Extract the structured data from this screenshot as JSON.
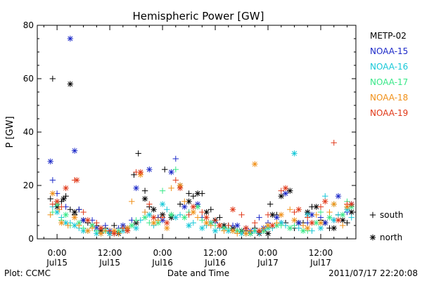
{
  "chart_data": {
    "type": "scatter",
    "title": "Hemispheric Power [GW]",
    "ylabel": "P [GW]",
    "xlabel": "Date and Time",
    "xlim_hours": [
      -4.5,
      68
    ],
    "ylim": [
      0,
      80
    ],
    "yticks": [
      0,
      20,
      40,
      60,
      80
    ],
    "xticks": [
      {
        "t": 0,
        "time": "0:00",
        "date": "Jul15"
      },
      {
        "t": 12,
        "time": "12:00",
        "date": "Jul15"
      },
      {
        "t": 24,
        "time": "0:00",
        "date": "Jul16"
      },
      {
        "t": 36,
        "time": "12:00",
        "date": "Jul16"
      },
      {
        "t": 48,
        "time": "0:00",
        "date": "Jul17"
      },
      {
        "t": 60,
        "time": "12:00",
        "date": "Jul17"
      }
    ],
    "marker_legend": [
      {
        "symbol": "+",
        "label": "south"
      },
      {
        "symbol": "*",
        "label": "north"
      }
    ],
    "series": [
      {
        "name": "METP-02",
        "color": "#000000",
        "south": [
          [
            -1,
            60
          ],
          [
            -1.5,
            15
          ],
          [
            1,
            14
          ],
          [
            2,
            16
          ],
          [
            3,
            11
          ],
          [
            4,
            9
          ],
          [
            5,
            11
          ],
          [
            7,
            6
          ],
          [
            9,
            5
          ],
          [
            11,
            4
          ],
          [
            13,
            5
          ],
          [
            15,
            4
          ],
          [
            17.5,
            24
          ],
          [
            18.5,
            32
          ],
          [
            20,
            18
          ],
          [
            21,
            12
          ],
          [
            23,
            8
          ],
          [
            24.5,
            26
          ],
          [
            26,
            9
          ],
          [
            28,
            13
          ],
          [
            30,
            17
          ],
          [
            31,
            16
          ],
          [
            33,
            17
          ],
          [
            35,
            11
          ],
          [
            37,
            8
          ],
          [
            39,
            5
          ],
          [
            41,
            3
          ],
          [
            43,
            3
          ],
          [
            45,
            4
          ],
          [
            47,
            3
          ],
          [
            48.5,
            13
          ],
          [
            50,
            9
          ],
          [
            52,
            6
          ],
          [
            54,
            4
          ],
          [
            56,
            6
          ],
          [
            58,
            12
          ],
          [
            60,
            7
          ],
          [
            62,
            4
          ],
          [
            64,
            9
          ],
          [
            66,
            6
          ]
        ],
        "north": [
          [
            0,
            12
          ],
          [
            1.5,
            15
          ],
          [
            3,
            58
          ],
          [
            4,
            10
          ],
          [
            6,
            7
          ],
          [
            8,
            5
          ],
          [
            10,
            3
          ],
          [
            12,
            2
          ],
          [
            14,
            2
          ],
          [
            16,
            4
          ],
          [
            18,
            6
          ],
          [
            20,
            15
          ],
          [
            22,
            11
          ],
          [
            24,
            9
          ],
          [
            26,
            8
          ],
          [
            28,
            20
          ],
          [
            30,
            14
          ],
          [
            32,
            17
          ],
          [
            34,
            10
          ],
          [
            36,
            7
          ],
          [
            38,
            5
          ],
          [
            40,
            4
          ],
          [
            42,
            3
          ],
          [
            44,
            2
          ],
          [
            46,
            2
          ],
          [
            48,
            2
          ],
          [
            49,
            9
          ],
          [
            51,
            16
          ],
          [
            53,
            18
          ],
          [
            55,
            6
          ],
          [
            57,
            10
          ],
          [
            59,
            12
          ],
          [
            61,
            6
          ],
          [
            63,
            4
          ],
          [
            65,
            7
          ],
          [
            67,
            10
          ]
        ]
      },
      {
        "name": "NOAA-15",
        "color": "#1b28c8",
        "south": [
          [
            -1,
            22
          ],
          [
            0,
            17
          ],
          [
            2,
            12
          ],
          [
            5,
            11
          ],
          [
            8,
            7
          ],
          [
            11,
            5
          ],
          [
            14,
            4
          ],
          [
            17,
            7
          ],
          [
            20,
            10
          ],
          [
            23,
            8
          ],
          [
            27,
            30
          ],
          [
            30,
            10
          ],
          [
            33,
            8
          ],
          [
            36,
            6
          ],
          [
            40,
            5
          ],
          [
            43,
            4
          ],
          [
            46,
            8
          ],
          [
            48,
            6
          ],
          [
            51,
            6
          ],
          [
            54,
            5
          ],
          [
            57,
            6
          ],
          [
            60,
            8
          ],
          [
            63,
            7
          ],
          [
            66,
            10
          ]
        ],
        "north": [
          [
            -1.5,
            29
          ],
          [
            3,
            75
          ],
          [
            4,
            33
          ],
          [
            6,
            7
          ],
          [
            9,
            4
          ],
          [
            12,
            3
          ],
          [
            15,
            5
          ],
          [
            18,
            19
          ],
          [
            21,
            26
          ],
          [
            24,
            7
          ],
          [
            26,
            25
          ],
          [
            29,
            12
          ],
          [
            32,
            13
          ],
          [
            35,
            6
          ],
          [
            38,
            4
          ],
          [
            41,
            5
          ],
          [
            44,
            3
          ],
          [
            47,
            4
          ],
          [
            50,
            8
          ],
          [
            52,
            17
          ],
          [
            55,
            6
          ],
          [
            58,
            9
          ],
          [
            61,
            6
          ],
          [
            64,
            16
          ],
          [
            67,
            13
          ]
        ]
      },
      {
        "name": "NOAA-16",
        "color": "#18c8d8",
        "south": [
          [
            -1,
            12
          ],
          [
            1,
            8
          ],
          [
            3,
            6
          ],
          [
            5,
            4
          ],
          [
            7,
            3
          ],
          [
            10,
            2
          ],
          [
            13,
            2
          ],
          [
            16,
            3
          ],
          [
            19,
            7
          ],
          [
            22,
            5
          ],
          [
            25,
            11
          ],
          [
            28,
            9
          ],
          [
            31,
            6
          ],
          [
            34,
            5
          ],
          [
            37,
            4
          ],
          [
            40,
            3
          ],
          [
            43,
            2
          ],
          [
            46,
            2
          ],
          [
            49,
            4
          ],
          [
            52,
            5
          ],
          [
            55,
            4
          ],
          [
            58,
            3
          ],
          [
            61,
            16
          ],
          [
            64,
            9
          ],
          [
            67,
            8
          ]
        ],
        "north": [
          [
            0,
            10
          ],
          [
            2,
            6
          ],
          [
            4,
            5
          ],
          [
            6,
            3
          ],
          [
            9,
            2
          ],
          [
            12,
            2
          ],
          [
            15,
            3
          ],
          [
            18,
            4
          ],
          [
            21,
            9
          ],
          [
            24,
            13
          ],
          [
            27,
            8
          ],
          [
            30,
            5
          ],
          [
            33,
            4
          ],
          [
            36,
            3
          ],
          [
            39,
            3
          ],
          [
            42,
            2
          ],
          [
            45,
            3
          ],
          [
            48,
            4
          ],
          [
            51,
            6
          ],
          [
            54,
            32
          ],
          [
            57,
            9
          ],
          [
            60,
            4
          ],
          [
            63,
            7
          ],
          [
            66,
            11
          ]
        ]
      },
      {
        "name": "NOAA-17",
        "color": "#38e888",
        "south": [
          [
            -1,
            10
          ],
          [
            1,
            7
          ],
          [
            3,
            5
          ],
          [
            6,
            4
          ],
          [
            9,
            3
          ],
          [
            12,
            3
          ],
          [
            15,
            4
          ],
          [
            18,
            7
          ],
          [
            21,
            6
          ],
          [
            24,
            18
          ],
          [
            27,
            26
          ],
          [
            30,
            10
          ],
          [
            33,
            7
          ],
          [
            36,
            5
          ],
          [
            39,
            4
          ],
          [
            42,
            3
          ],
          [
            45,
            3
          ],
          [
            48,
            4
          ],
          [
            51,
            5
          ],
          [
            54,
            5
          ],
          [
            57,
            3
          ],
          [
            60,
            10
          ],
          [
            63,
            13
          ],
          [
            66,
            14
          ]
        ],
        "north": [
          [
            0,
            13
          ],
          [
            2,
            9
          ],
          [
            5,
            6
          ],
          [
            8,
            5
          ],
          [
            11,
            3
          ],
          [
            14,
            3
          ],
          [
            17,
            5
          ],
          [
            20,
            8
          ],
          [
            23,
            6
          ],
          [
            26,
            9
          ],
          [
            29,
            8
          ],
          [
            32,
            12
          ],
          [
            35,
            6
          ],
          [
            38,
            4
          ],
          [
            41,
            3
          ],
          [
            44,
            2
          ],
          [
            47,
            3
          ],
          [
            50,
            5
          ],
          [
            53,
            4
          ],
          [
            56,
            3
          ],
          [
            59,
            6
          ],
          [
            62,
            8
          ],
          [
            65,
            9
          ],
          [
            67,
            12
          ]
        ]
      },
      {
        "name": "NOAA-18",
        "color": "#f09018",
        "south": [
          [
            -1.5,
            9
          ],
          [
            0.5,
            11
          ],
          [
            2.5,
            5
          ],
          [
            5,
            5
          ],
          [
            8,
            4
          ],
          [
            11,
            3
          ],
          [
            14,
            2
          ],
          [
            17,
            14
          ],
          [
            20,
            10
          ],
          [
            23,
            7
          ],
          [
            26,
            19
          ],
          [
            29,
            14
          ],
          [
            32,
            8
          ],
          [
            35,
            5
          ],
          [
            38,
            3
          ],
          [
            41,
            2
          ],
          [
            44,
            3
          ],
          [
            47,
            4
          ],
          [
            50,
            6
          ],
          [
            53,
            11
          ],
          [
            56,
            5
          ],
          [
            59,
            9
          ],
          [
            62,
            10
          ],
          [
            65,
            5
          ]
        ],
        "north": [
          [
            -1,
            17
          ],
          [
            1,
            6
          ],
          [
            4,
            8
          ],
          [
            7,
            3
          ],
          [
            10,
            2
          ],
          [
            13,
            3
          ],
          [
            16,
            4
          ],
          [
            19,
            24
          ],
          [
            22,
            6
          ],
          [
            25,
            4
          ],
          [
            28,
            20
          ],
          [
            31,
            10
          ],
          [
            34,
            6
          ],
          [
            37,
            5
          ],
          [
            40,
            3
          ],
          [
            43,
            2
          ],
          [
            45,
            28
          ],
          [
            48,
            5
          ],
          [
            51,
            9
          ],
          [
            54,
            7
          ],
          [
            57,
            4
          ],
          [
            60,
            6
          ],
          [
            63,
            13
          ],
          [
            66,
            12
          ]
        ]
      },
      {
        "name": "NOAA-19",
        "color": "#e03818",
        "south": [
          [
            -1,
            13
          ],
          [
            1,
            12
          ],
          [
            4,
            22
          ],
          [
            6,
            10
          ],
          [
            9,
            6
          ],
          [
            12,
            3
          ],
          [
            15,
            4
          ],
          [
            18,
            25
          ],
          [
            21,
            13
          ],
          [
            24,
            8
          ],
          [
            27,
            22
          ],
          [
            30,
            9
          ],
          [
            33,
            10
          ],
          [
            36,
            7
          ],
          [
            39,
            5
          ],
          [
            42,
            9
          ],
          [
            45,
            6
          ],
          [
            48,
            9
          ],
          [
            51,
            18
          ],
          [
            54,
            10
          ],
          [
            57,
            8
          ],
          [
            60,
            12
          ],
          [
            63,
            36
          ],
          [
            66,
            13
          ]
        ],
        "north": [
          [
            0,
            14
          ],
          [
            2,
            19
          ],
          [
            4.5,
            22
          ],
          [
            7,
            7
          ],
          [
            10,
            4
          ],
          [
            13,
            2
          ],
          [
            16,
            3
          ],
          [
            19,
            25
          ],
          [
            22,
            8
          ],
          [
            25,
            6
          ],
          [
            28,
            19
          ],
          [
            31,
            12
          ],
          [
            34,
            8
          ],
          [
            37,
            5
          ],
          [
            40,
            11
          ],
          [
            43,
            4
          ],
          [
            46,
            3
          ],
          [
            49,
            5
          ],
          [
            52,
            19
          ],
          [
            55,
            11
          ],
          [
            58,
            6
          ],
          [
            61,
            14
          ],
          [
            64,
            7
          ],
          [
            67,
            13
          ]
        ]
      }
    ]
  },
  "footer": {
    "plot_credit": "Plot: CCMC",
    "timestamp": "2011/07/17 22:20:08"
  }
}
